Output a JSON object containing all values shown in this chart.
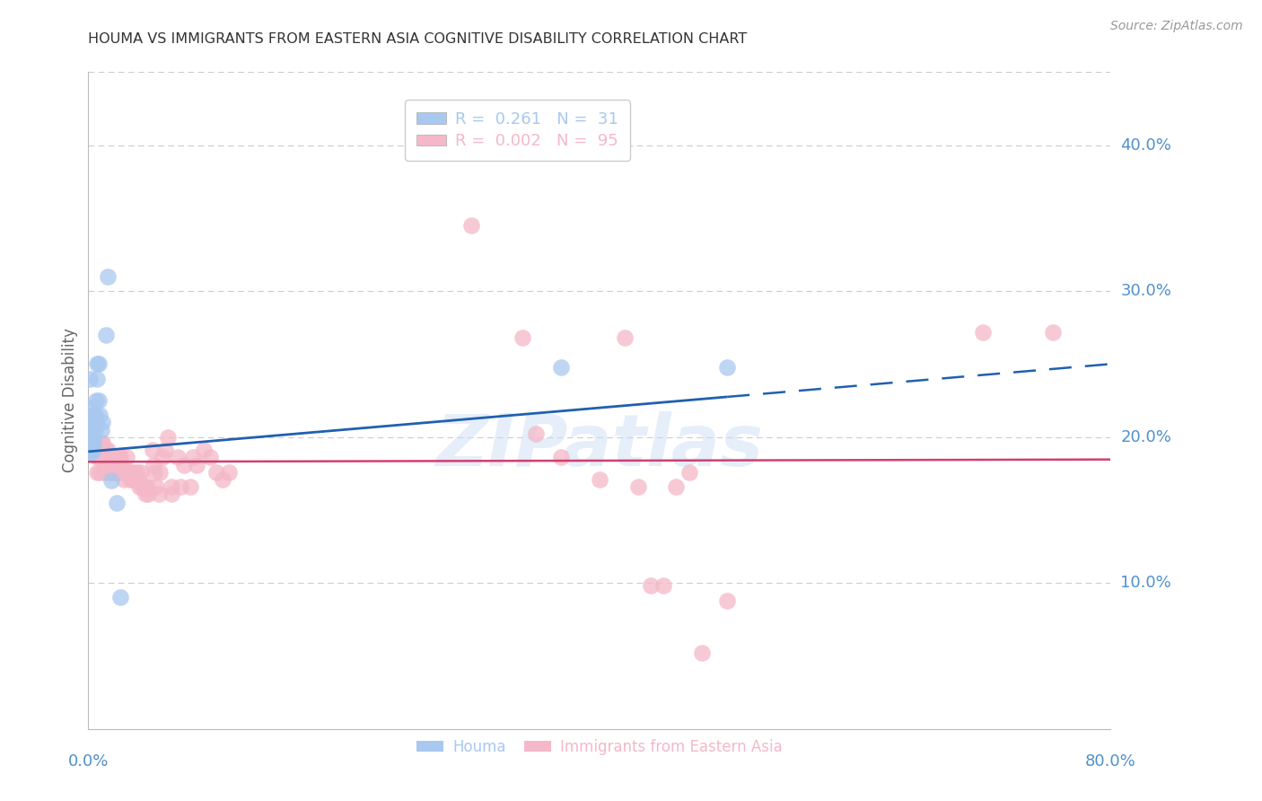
{
  "title": "HOUMA VS IMMIGRANTS FROM EASTERN ASIA COGNITIVE DISABILITY CORRELATION CHART",
  "source": "Source: ZipAtlas.com",
  "ylabel": "Cognitive Disability",
  "xlim": [
    0.0,
    0.8
  ],
  "ylim": [
    0.0,
    0.45
  ],
  "right_ytick_vals": [
    0.1,
    0.2,
    0.3,
    0.4
  ],
  "right_ytick_labels": [
    "10.0%",
    "20.0%",
    "30.0%",
    "40.0%"
  ],
  "houma_color": "#a8c8ef",
  "immigrants_color": "#f4b8c8",
  "houma_line_color": "#2060b0",
  "immigrants_line_color": "#d04070",
  "houma_line_solid_end": 0.5,
  "regression_houma_slope": 0.075,
  "regression_houma_intercept": 0.19,
  "regression_immigrants_slope": 0.002,
  "regression_immigrants_intercept": 0.183,
  "background_color": "#ffffff",
  "grid_color": "#cccccc",
  "title_color": "#333333",
  "axis_label_color": "#5090cc",
  "watermark": "ZIPatlas",
  "houma_points": [
    [
      0.0,
      0.19
    ],
    [
      0.0,
      0.22
    ],
    [
      0.001,
      0.24
    ],
    [
      0.001,
      0.21
    ],
    [
      0.002,
      0.195
    ],
    [
      0.002,
      0.2
    ],
    [
      0.002,
      0.19
    ],
    [
      0.003,
      0.205
    ],
    [
      0.003,
      0.195
    ],
    [
      0.003,
      0.19
    ],
    [
      0.004,
      0.215
    ],
    [
      0.004,
      0.2
    ],
    [
      0.004,
      0.195
    ],
    [
      0.005,
      0.215
    ],
    [
      0.005,
      0.205
    ],
    [
      0.006,
      0.225
    ],
    [
      0.006,
      0.21
    ],
    [
      0.007,
      0.25
    ],
    [
      0.007,
      0.24
    ],
    [
      0.008,
      0.25
    ],
    [
      0.008,
      0.225
    ],
    [
      0.009,
      0.215
    ],
    [
      0.01,
      0.205
    ],
    [
      0.011,
      0.21
    ],
    [
      0.014,
      0.27
    ],
    [
      0.015,
      0.31
    ],
    [
      0.018,
      0.17
    ],
    [
      0.022,
      0.155
    ],
    [
      0.025,
      0.09
    ],
    [
      0.37,
      0.248
    ],
    [
      0.5,
      0.248
    ]
  ],
  "immigrants_points": [
    [
      0.005,
      0.192
    ],
    [
      0.006,
      0.196
    ],
    [
      0.007,
      0.186
    ],
    [
      0.007,
      0.176
    ],
    [
      0.008,
      0.196
    ],
    [
      0.008,
      0.191
    ],
    [
      0.009,
      0.186
    ],
    [
      0.009,
      0.176
    ],
    [
      0.01,
      0.196
    ],
    [
      0.01,
      0.191
    ],
    [
      0.011,
      0.196
    ],
    [
      0.012,
      0.186
    ],
    [
      0.012,
      0.176
    ],
    [
      0.013,
      0.186
    ],
    [
      0.013,
      0.181
    ],
    [
      0.014,
      0.191
    ],
    [
      0.014,
      0.186
    ],
    [
      0.015,
      0.191
    ],
    [
      0.015,
      0.181
    ],
    [
      0.016,
      0.186
    ],
    [
      0.016,
      0.176
    ],
    [
      0.017,
      0.186
    ],
    [
      0.017,
      0.176
    ],
    [
      0.018,
      0.186
    ],
    [
      0.018,
      0.181
    ],
    [
      0.019,
      0.181
    ],
    [
      0.019,
      0.176
    ],
    [
      0.02,
      0.186
    ],
    [
      0.02,
      0.176
    ],
    [
      0.021,
      0.186
    ],
    [
      0.022,
      0.186
    ],
    [
      0.022,
      0.176
    ],
    [
      0.023,
      0.181
    ],
    [
      0.024,
      0.186
    ],
    [
      0.025,
      0.186
    ],
    [
      0.025,
      0.176
    ],
    [
      0.026,
      0.181
    ],
    [
      0.027,
      0.176
    ],
    [
      0.028,
      0.171
    ],
    [
      0.029,
      0.176
    ],
    [
      0.03,
      0.186
    ],
    [
      0.031,
      0.176
    ],
    [
      0.032,
      0.176
    ],
    [
      0.033,
      0.171
    ],
    [
      0.034,
      0.176
    ],
    [
      0.035,
      0.171
    ],
    [
      0.036,
      0.176
    ],
    [
      0.037,
      0.171
    ],
    [
      0.038,
      0.176
    ],
    [
      0.04,
      0.171
    ],
    [
      0.04,
      0.166
    ],
    [
      0.041,
      0.176
    ],
    [
      0.042,
      0.166
    ],
    [
      0.043,
      0.166
    ],
    [
      0.045,
      0.166
    ],
    [
      0.045,
      0.161
    ],
    [
      0.046,
      0.166
    ],
    [
      0.047,
      0.161
    ],
    [
      0.05,
      0.191
    ],
    [
      0.051,
      0.181
    ],
    [
      0.052,
      0.176
    ],
    [
      0.053,
      0.166
    ],
    [
      0.055,
      0.161
    ],
    [
      0.056,
      0.176
    ],
    [
      0.058,
      0.186
    ],
    [
      0.06,
      0.191
    ],
    [
      0.062,
      0.2
    ],
    [
      0.065,
      0.166
    ],
    [
      0.065,
      0.161
    ],
    [
      0.07,
      0.186
    ],
    [
      0.072,
      0.166
    ],
    [
      0.075,
      0.181
    ],
    [
      0.08,
      0.166
    ],
    [
      0.082,
      0.186
    ],
    [
      0.085,
      0.181
    ],
    [
      0.09,
      0.191
    ],
    [
      0.095,
      0.186
    ],
    [
      0.1,
      0.176
    ],
    [
      0.105,
      0.171
    ],
    [
      0.11,
      0.176
    ],
    [
      0.3,
      0.345
    ],
    [
      0.34,
      0.268
    ],
    [
      0.35,
      0.202
    ],
    [
      0.37,
      0.186
    ],
    [
      0.4,
      0.171
    ],
    [
      0.42,
      0.268
    ],
    [
      0.43,
      0.166
    ],
    [
      0.44,
      0.098
    ],
    [
      0.45,
      0.098
    ],
    [
      0.46,
      0.166
    ],
    [
      0.47,
      0.176
    ],
    [
      0.48,
      0.052
    ],
    [
      0.5,
      0.088
    ],
    [
      0.7,
      0.272
    ],
    [
      0.755,
      0.272
    ]
  ]
}
